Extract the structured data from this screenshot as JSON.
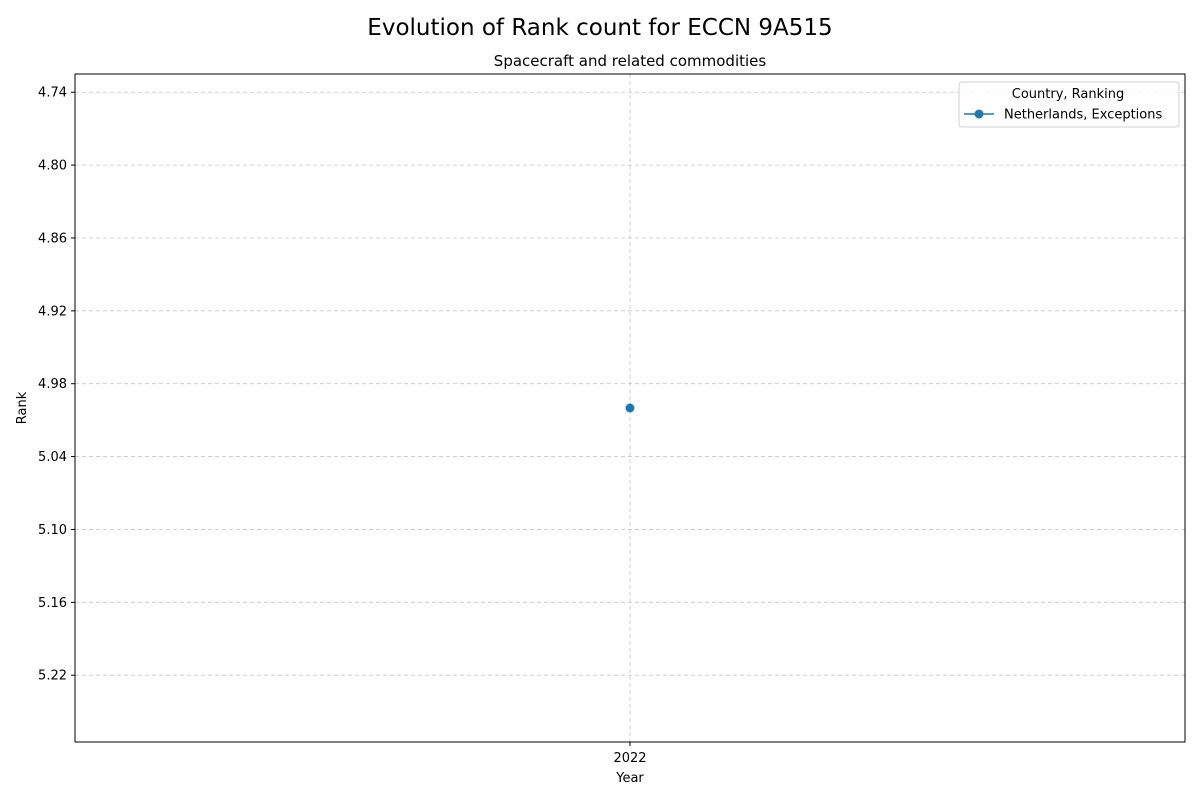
{
  "chart_data": {
    "type": "line",
    "title": "Evolution of Rank count for ECCN 9A515",
    "subtitle": "Spacecraft and related commodities",
    "xlabel": "Year",
    "ylabel": "Rank",
    "categories": [
      "2022"
    ],
    "y_ticks": [
      4.74,
      4.8,
      4.86,
      4.92,
      4.98,
      5.04,
      5.1,
      5.16,
      5.22
    ],
    "y_tick_labels": [
      "4.74",
      "4.80",
      "4.86",
      "4.92",
      "4.98",
      "5.04",
      "5.10",
      "5.16",
      "5.22"
    ],
    "ylim": [
      4.725,
      5.275
    ],
    "y_inverted": true,
    "grid": true,
    "legend": {
      "title": "Country, Ranking",
      "placement": "top-right"
    },
    "series": [
      {
        "name": "Netherlands, Exceptions",
        "color": "#1f77b4",
        "values": [
          5.0
        ]
      }
    ]
  }
}
